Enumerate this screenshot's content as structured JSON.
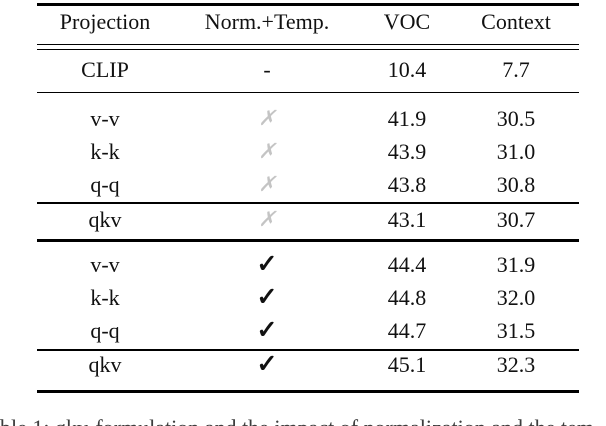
{
  "table": {
    "headers": [
      "Projection",
      "Norm.+Temp.",
      "VOC",
      "Context"
    ],
    "rows": [
      {
        "projection": "CLIP",
        "norm_temp": "-",
        "voc": "10.4",
        "context": "7.7"
      },
      {
        "projection": "v-v",
        "norm_temp": "✗",
        "voc": "41.9",
        "context": "30.5"
      },
      {
        "projection": "k-k",
        "norm_temp": "✗",
        "voc": "43.9",
        "context": "31.0"
      },
      {
        "projection": "q-q",
        "norm_temp": "✗",
        "voc": "43.8",
        "context": "30.8"
      },
      {
        "projection": "qkv",
        "norm_temp": "✗",
        "voc": "43.1",
        "context": "30.7"
      },
      {
        "projection": "v-v",
        "norm_temp": "✓",
        "voc": "44.4",
        "context": "31.9"
      },
      {
        "projection": "k-k",
        "norm_temp": "✓",
        "voc": "44.8",
        "context": "32.0"
      },
      {
        "projection": "q-q",
        "norm_temp": "✓",
        "voc": "44.7",
        "context": "31.5"
      },
      {
        "projection": "qkv",
        "norm_temp": "✓",
        "voc": "45.1",
        "context": "32.3"
      }
    ],
    "colors": {
      "cross_mark": "#c4c4c4",
      "check_mark": "#111111",
      "text": "#111111",
      "rule": "#000000",
      "background": "#ffffff"
    }
  },
  "caption": {
    "fragment": "ble 1: qkv-formulation and the impact of normalization and the tem"
  }
}
